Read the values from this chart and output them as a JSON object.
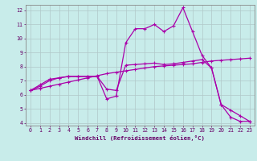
{
  "xlabel": "Windchill (Refroidissement éolien,°C)",
  "bg_color": "#c8ecea",
  "grid_color": "#b0c8c8",
  "line_color": "#aa00aa",
  "xlim": [
    -0.5,
    23.5
  ],
  "ylim": [
    3.8,
    12.4
  ],
  "yticks": [
    4,
    5,
    6,
    7,
    8,
    9,
    10,
    11,
    12
  ],
  "xticks": [
    0,
    1,
    2,
    3,
    4,
    5,
    6,
    7,
    8,
    9,
    10,
    11,
    12,
    13,
    14,
    15,
    16,
    17,
    18,
    19,
    20,
    21,
    22,
    23
  ],
  "curve1_x": [
    0,
    1,
    2,
    3,
    4,
    5,
    6,
    7,
    8,
    9,
    10,
    11,
    12,
    13,
    14,
    15,
    16,
    17,
    18,
    19,
    20,
    21,
    22,
    23
  ],
  "curve1_y": [
    6.3,
    6.7,
    7.1,
    7.2,
    7.3,
    7.3,
    7.3,
    7.3,
    5.7,
    5.9,
    9.7,
    10.7,
    10.7,
    11.0,
    10.5,
    10.9,
    12.2,
    10.5,
    8.8,
    7.9,
    5.3,
    4.4,
    4.1,
    4.1
  ],
  "curve2_x": [
    0,
    1,
    2,
    3,
    4,
    5,
    6,
    7,
    8,
    9,
    10,
    11,
    12,
    13,
    14,
    15,
    16,
    17,
    18,
    19,
    20,
    21,
    22,
    23
  ],
  "curve2_y": [
    6.3,
    6.45,
    6.6,
    6.75,
    6.9,
    7.05,
    7.2,
    7.35,
    7.5,
    7.6,
    7.7,
    7.8,
    7.9,
    8.0,
    8.05,
    8.1,
    8.15,
    8.2,
    8.3,
    8.4,
    8.45,
    8.5,
    8.55,
    8.6
  ],
  "curve3_x": [
    0,
    1,
    2,
    3,
    4,
    5,
    6,
    7,
    8,
    9,
    10,
    11,
    12,
    13,
    14,
    15,
    16,
    17,
    18,
    19,
    20,
    21,
    22,
    23
  ],
  "curve3_y": [
    6.3,
    6.6,
    7.0,
    7.2,
    7.3,
    7.3,
    7.3,
    7.3,
    6.4,
    6.3,
    8.1,
    8.15,
    8.2,
    8.25,
    8.15,
    8.2,
    8.3,
    8.4,
    8.5,
    7.9,
    5.3,
    4.9,
    4.5,
    4.1
  ],
  "tick_color": "#660066",
  "tick_fontsize": 4.8,
  "xlabel_fontsize": 5.2,
  "lw": 0.9,
  "marker_size": 2.5
}
